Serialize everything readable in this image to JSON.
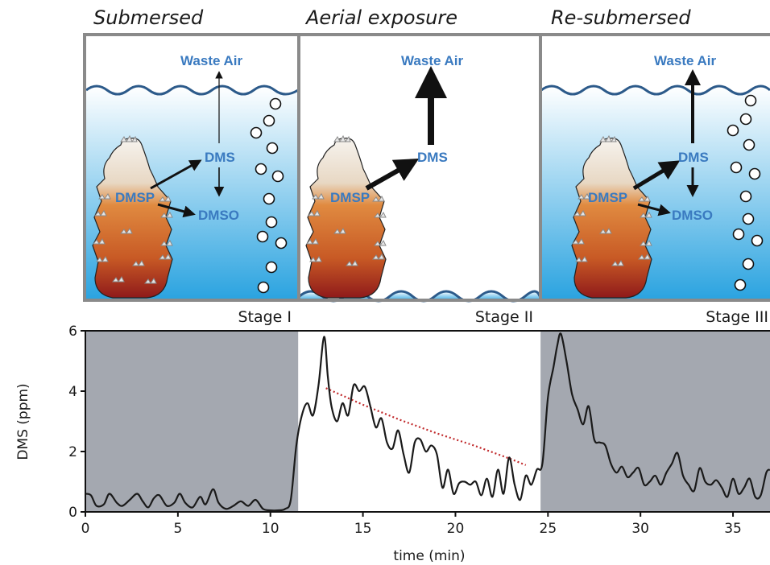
{
  "panels": [
    {
      "title": "Submersed",
      "stage": "Stage I",
      "labels": {
        "waste": "Waste Air",
        "dms": "DMS",
        "dmsp": "DMSP",
        "dmso": "DMSO"
      }
    },
    {
      "title": "Aerial exposure",
      "stage": "Stage II",
      "labels": {
        "waste": "Waste Air",
        "dms": "DMS",
        "dmsp": "DMSP"
      }
    },
    {
      "title": "Re-submersed",
      "stage": "Stage III",
      "labels": {
        "waste": "Waste Air",
        "dms": "DMS",
        "dmsp": "DMSP",
        "dmso": "DMSO"
      }
    }
  ],
  "colors": {
    "water_top": "#ffffff",
    "water_bottom": "#2aa3e0",
    "wave": "#2c5a8a",
    "shade": "#a4a8b0",
    "frame": "#8a8a8a",
    "label_blue": "#3a7ac0",
    "trend": "#c0282a",
    "coral_light": "#f0ece6",
    "coral_mid": "#d9782f",
    "coral_dark": "#9c2020"
  },
  "chart_data": {
    "type": "line",
    "xlabel": "time (min)",
    "ylabel": "DMS (ppm)",
    "xlim": [
      0,
      37
    ],
    "ylim": [
      0,
      6
    ],
    "xticks": [
      0,
      5,
      10,
      15,
      20,
      25,
      30,
      35
    ],
    "yticks": [
      0,
      2,
      4,
      6
    ],
    "shaded_intervals": [
      [
        0,
        11.5
      ],
      [
        24.6,
        37
      ]
    ],
    "series": [
      {
        "style": "solid",
        "x": [
          0,
          0.3,
          0.6,
          1.0,
          1.3,
          1.7,
          2.0,
          2.4,
          2.8,
          3.1,
          3.4,
          3.7,
          4.0,
          4.4,
          4.8,
          5.1,
          5.4,
          5.8,
          6.2,
          6.5,
          6.9,
          7.2,
          7.6,
          8.0,
          8.4,
          8.8,
          9.2,
          9.6,
          10.0,
          10.4,
          10.8,
          11.1,
          11.4,
          11.7,
          12.0,
          12.3,
          12.6,
          12.9,
          13.1,
          13.3,
          13.6,
          13.9,
          14.2,
          14.5,
          14.8,
          15.1,
          15.4,
          15.7,
          16.0,
          16.3,
          16.6,
          16.9,
          17.2,
          17.5,
          17.8,
          18.1,
          18.4,
          18.7,
          19.0,
          19.3,
          19.6,
          19.9,
          20.2,
          20.5,
          20.8,
          21.1,
          21.4,
          21.7,
          22.0,
          22.3,
          22.6,
          22.9,
          23.2,
          23.5,
          23.8,
          24.1,
          24.4,
          24.7,
          25.0,
          25.3,
          25.5,
          25.7,
          26.0,
          26.3,
          26.6,
          26.9,
          27.2,
          27.5,
          27.8,
          28.1,
          28.4,
          28.7,
          29.0,
          29.3,
          29.6,
          29.9,
          30.2,
          30.5,
          30.8,
          31.1,
          31.4,
          31.7,
          32.0,
          32.3,
          32.6,
          32.9,
          33.2,
          33.5,
          33.8,
          34.1,
          34.4,
          34.7,
          35.0,
          35.3,
          35.6,
          35.9,
          36.2,
          36.5,
          36.8,
          37.0
        ],
        "y": [
          0.6,
          0.55,
          0.2,
          0.25,
          0.6,
          0.3,
          0.2,
          0.4,
          0.6,
          0.35,
          0.15,
          0.45,
          0.55,
          0.2,
          0.3,
          0.6,
          0.3,
          0.15,
          0.5,
          0.25,
          0.75,
          0.3,
          0.1,
          0.2,
          0.35,
          0.2,
          0.4,
          0.1,
          0.05,
          0.05,
          0.1,
          0.4,
          2.2,
          3.2,
          3.6,
          3.2,
          4.2,
          5.8,
          4.5,
          3.5,
          3.0,
          3.6,
          3.2,
          4.2,
          4.0,
          4.15,
          3.5,
          2.8,
          3.1,
          2.3,
          2.1,
          2.7,
          1.9,
          1.3,
          2.3,
          2.4,
          2.0,
          2.2,
          1.9,
          0.8,
          1.4,
          0.6,
          0.95,
          1.0,
          0.9,
          1.0,
          0.55,
          1.1,
          0.5,
          1.4,
          0.6,
          1.8,
          0.9,
          0.4,
          1.2,
          0.9,
          1.4,
          1.6,
          3.8,
          4.8,
          5.5,
          5.9,
          5.0,
          3.9,
          3.4,
          2.9,
          3.5,
          2.4,
          2.3,
          2.2,
          1.6,
          1.3,
          1.5,
          1.15,
          1.3,
          1.45,
          0.9,
          1.0,
          1.2,
          0.9,
          1.3,
          1.6,
          1.95,
          1.2,
          0.9,
          0.7,
          1.45,
          1.0,
          0.9,
          1.05,
          0.8,
          0.5,
          1.1,
          0.6,
          0.8,
          1.1,
          0.5,
          0.55,
          1.3,
          1.4
        ]
      },
      {
        "style": "dotted",
        "x": [
          13.0,
          15.0,
          17.0,
          19.0,
          21.0,
          23.0,
          23.8
        ],
        "y": [
          4.1,
          3.55,
          3.05,
          2.6,
          2.2,
          1.75,
          1.55
        ]
      }
    ]
  }
}
